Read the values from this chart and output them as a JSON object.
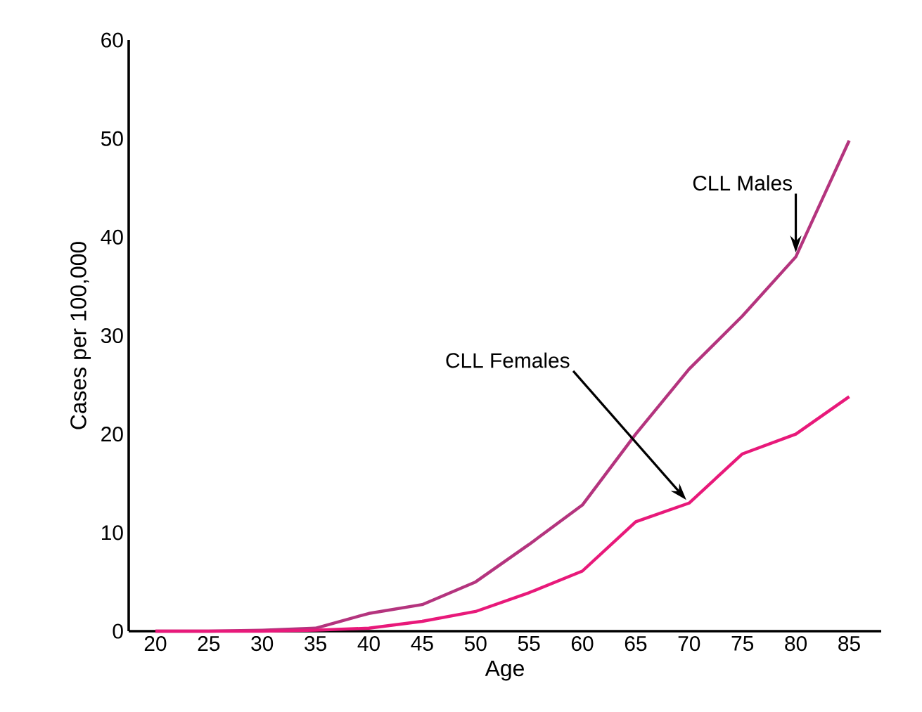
{
  "chart_data": {
    "type": "line",
    "xlabel": "Age",
    "ylabel": "Cases per 100,000",
    "x": [
      20,
      25,
      30,
      35,
      40,
      45,
      50,
      55,
      60,
      65,
      70,
      75,
      80,
      85
    ],
    "xlim": [
      17.5,
      88
    ],
    "xticks": [
      20,
      25,
      30,
      35,
      40,
      45,
      50,
      55,
      60,
      65,
      70,
      75,
      80,
      85
    ],
    "ylim": [
      0,
      60
    ],
    "yticks": [
      0,
      10,
      20,
      30,
      40,
      50,
      60
    ],
    "series": [
      {
        "name": "CLL Males",
        "color": "#b4347e",
        "values": [
          0,
          0,
          0.1,
          0.3,
          1.8,
          2.7,
          5,
          8.8,
          12.8,
          20,
          26.6,
          32,
          38,
          49.8
        ]
      },
      {
        "name": "CLL Females",
        "color": "#e8197a",
        "values": [
          0,
          0,
          0,
          0.1,
          0.3,
          1,
          2,
          3.9,
          6.1,
          11.1,
          13,
          18,
          20,
          23.8
        ]
      }
    ]
  }
}
